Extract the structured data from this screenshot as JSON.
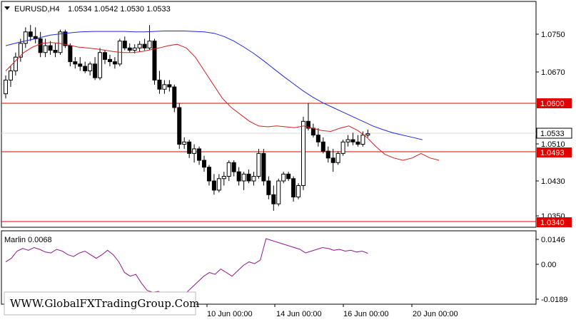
{
  "header": {
    "symbol": "EURUSD,H4",
    "ohlc": "1.0534 1.0542 1.0530 1.0533"
  },
  "price_axis": {
    "ticks": [
      "1.0750",
      "1.0670",
      "1.0510",
      "1.0430",
      "1.0350"
    ],
    "levels": [
      {
        "label": "1.0600",
        "value": 1.06,
        "color": "#e00000"
      },
      {
        "label": "1.0493",
        "value": 1.0493,
        "color": "#e00000"
      },
      {
        "label": "1.0340",
        "value": 1.034,
        "color": "#e00000"
      }
    ],
    "current": {
      "label": "1.0533",
      "value": 1.0533
    }
  },
  "indicator": {
    "label": "Marlin 0.0068",
    "ticks": [
      "0.0146",
      "0.00",
      "-0.0189"
    ]
  },
  "time_axis": {
    "labels": [
      "10 Jun 00:00",
      "14 Jun 00:00",
      "16 Jun 00:00",
      "20 Jun 00:00"
    ]
  },
  "watermark": "WWW.GlobalFXTradingGroup.Com",
  "colors": {
    "ma_slow": "#1f2bd8",
    "ma_fast": "#d62020",
    "marlin": "#8e1a8e",
    "level": "#e00000",
    "grid": "#c8c8c8"
  },
  "chart_data": {
    "type": "candlestick",
    "ohlc": [
      [
        1.062,
        1.066,
        1.061,
        1.065
      ],
      [
        1.065,
        1.068,
        1.0635,
        1.067
      ],
      [
        1.067,
        1.071,
        1.066,
        1.07
      ],
      [
        1.07,
        1.074,
        1.069,
        1.073
      ],
      [
        1.073,
        1.0765,
        1.072,
        1.0755
      ],
      [
        1.0755,
        1.077,
        1.0735,
        1.0745
      ],
      [
        1.0745,
        1.0765,
        1.073,
        1.074
      ],
      [
        1.074,
        1.0755,
        1.07,
        1.071
      ],
      [
        1.071,
        1.074,
        1.07,
        1.0725
      ],
      [
        1.0725,
        1.0735,
        1.0705,
        1.0715
      ],
      [
        1.0715,
        1.073,
        1.07,
        1.071
      ],
      [
        1.071,
        1.076,
        1.0705,
        1.0755
      ],
      [
        1.0755,
        1.076,
        1.072,
        1.0725
      ],
      [
        1.0725,
        1.073,
        1.068,
        1.069
      ],
      [
        1.069,
        1.07,
        1.0675,
        1.0685
      ],
      [
        1.0685,
        1.07,
        1.067,
        1.068
      ],
      [
        1.068,
        1.069,
        1.0665,
        1.067
      ],
      [
        1.067,
        1.069,
        1.066,
        1.0685
      ],
      [
        1.0685,
        1.07,
        1.065,
        1.0655
      ],
      [
        1.0655,
        1.072,
        1.065,
        1.071
      ],
      [
        1.071,
        1.0715,
        1.0685,
        1.0695
      ],
      [
        1.0695,
        1.0705,
        1.068,
        1.069
      ],
      [
        1.069,
        1.07,
        1.0675,
        1.0685
      ],
      [
        1.0685,
        1.074,
        1.068,
        1.0735
      ],
      [
        1.0735,
        1.0745,
        1.0715,
        1.072
      ],
      [
        1.072,
        1.073,
        1.071,
        1.0715
      ],
      [
        1.0715,
        1.0728,
        1.0708,
        1.072
      ],
      [
        1.072,
        1.0735,
        1.0712,
        1.0728
      ],
      [
        1.0728,
        1.074,
        1.0715,
        1.072
      ],
      [
        1.072,
        1.077,
        1.0715,
        1.0735
      ],
      [
        1.0735,
        1.074,
        1.064,
        1.065
      ],
      [
        1.065,
        1.067,
        1.062,
        1.063
      ],
      [
        1.063,
        1.065,
        1.062,
        1.064
      ],
      [
        1.064,
        1.065,
        1.0625,
        1.0635
      ],
      [
        1.0635,
        1.064,
        1.058,
        1.059
      ],
      [
        1.059,
        1.06,
        1.05,
        1.051
      ],
      [
        1.051,
        1.0525,
        1.05,
        1.0515
      ],
      [
        1.0515,
        1.052,
        1.048,
        1.049
      ],
      [
        1.049,
        1.051,
        1.047,
        1.05
      ],
      [
        1.05,
        1.0505,
        1.0465,
        1.0475
      ],
      [
        1.0475,
        1.0485,
        1.045,
        1.046
      ],
      [
        1.046,
        1.0465,
        1.042,
        1.043
      ],
      [
        1.043,
        1.0445,
        1.04,
        1.041
      ],
      [
        1.041,
        1.0445,
        1.0405,
        1.0435
      ],
      [
        1.0435,
        1.045,
        1.042,
        1.044
      ],
      [
        1.044,
        1.0475,
        1.043,
        1.047
      ],
      [
        1.047,
        1.0475,
        1.044,
        1.045
      ],
      [
        1.045,
        1.046,
        1.042,
        1.043
      ],
      [
        1.043,
        1.045,
        1.041,
        1.0445
      ],
      [
        1.0445,
        1.0455,
        1.0425,
        1.043
      ],
      [
        1.043,
        1.045,
        1.042,
        1.044
      ],
      [
        1.044,
        1.05,
        1.0435,
        1.049
      ],
      [
        1.049,
        1.05,
        1.042,
        1.043
      ],
      [
        1.043,
        1.044,
        1.039,
        1.04
      ],
      [
        1.04,
        1.042,
        1.0365,
        1.038
      ],
      [
        1.038,
        1.0435,
        1.0375,
        1.043
      ],
      [
        1.043,
        1.045,
        1.0425,
        1.0445
      ],
      [
        1.0445,
        1.045,
        1.043,
        1.0435
      ],
      [
        1.0435,
        1.044,
        1.0385,
        1.0395
      ],
      [
        1.0395,
        1.0425,
        1.039,
        1.042
      ],
      [
        1.042,
        1.057,
        1.041,
        1.056
      ],
      [
        1.056,
        1.06,
        1.054,
        1.0545
      ],
      [
        1.0545,
        1.0555,
        1.0525,
        1.053
      ],
      [
        1.053,
        1.0545,
        1.0505,
        1.0515
      ],
      [
        1.0515,
        1.0525,
        1.049,
        1.0495
      ],
      [
        1.0495,
        1.0505,
        1.047,
        1.048
      ],
      [
        1.048,
        1.05,
        1.045,
        1.047
      ],
      [
        1.047,
        1.0495,
        1.0465,
        1.049
      ],
      [
        1.049,
        1.052,
        1.0485,
        1.0515
      ],
      [
        1.0515,
        1.053,
        1.0505,
        1.052
      ],
      [
        1.052,
        1.0535,
        1.0508,
        1.0515
      ],
      [
        1.0515,
        1.053,
        1.0505,
        1.051
      ],
      [
        1.051,
        1.0538,
        1.0505,
        1.053
      ],
      [
        1.053,
        1.0542,
        1.0525,
        1.0533
      ]
    ],
    "ma_slow": [
      1.0725,
      1.0733,
      1.074,
      1.0748,
      1.0752,
      1.0755,
      1.0756,
      1.0756,
      1.0756,
      1.0755,
      1.0755,
      1.0756,
      1.0757,
      1.0757,
      1.0757,
      1.0756,
      1.0755,
      1.0752,
      1.0745,
      1.0735,
      1.0722,
      1.0708,
      1.0692,
      1.0675,
      1.0658,
      1.0642,
      1.0626,
      1.0612,
      1.06,
      1.059,
      1.058,
      1.057,
      1.056,
      1.055,
      1.0542,
      1.0535,
      1.053,
      1.0525,
      1.052
    ],
    "ma_slow_x": [
      0,
      3,
      6,
      9,
      12,
      15,
      18,
      21,
      24,
      26,
      28,
      30,
      32,
      34,
      36,
      38,
      40,
      42,
      44,
      46,
      48,
      50,
      52,
      54,
      56,
      58,
      60,
      62,
      64,
      66,
      68,
      70,
      72,
      74,
      76,
      78,
      80,
      82,
      84
    ],
    "ma_fast": [
      1.067,
      1.069,
      1.071,
      1.0722,
      1.073,
      1.0732,
      1.073,
      1.0726,
      1.0722,
      1.072,
      1.0718,
      1.0715,
      1.0712,
      1.071,
      1.071,
      1.0712,
      1.0716,
      1.072,
      1.0725,
      1.0728,
      1.072,
      1.07,
      1.067,
      1.064,
      1.061,
      1.059,
      1.0575,
      1.056,
      1.055,
      1.0548,
      1.055,
      1.0548,
      1.0546,
      1.055,
      1.0545,
      1.054,
      1.0538,
      1.0545,
      1.055,
      1.054,
      1.0525,
      1.0505,
      1.0488,
      1.048,
      1.0475,
      1.048,
      1.049,
      1.048,
      1.0475
    ],
    "ma_fast_x": [
      0,
      2,
      4,
      6,
      8,
      10,
      12,
      14,
      16,
      18,
      20,
      22,
      24,
      26,
      28,
      30,
      32,
      34,
      36,
      38,
      40,
      42,
      44,
      46,
      48,
      50,
      52,
      54,
      56,
      58,
      60,
      62,
      64,
      66,
      68,
      70,
      72,
      74,
      76,
      78,
      80,
      82,
      84,
      86,
      88,
      90,
      92,
      94,
      96
    ],
    "marlin": [
      0.002,
      0.004,
      0.008,
      0.0095,
      0.0085,
      0.01,
      0.009,
      0.0075,
      0.007,
      0.009,
      0.008,
      0.006,
      0.005,
      0.007,
      0.008,
      0.006,
      0.004,
      0.006,
      0.0085,
      0.006,
      0.002,
      -0.004,
      -0.006,
      -0.005,
      -0.01,
      -0.014,
      -0.015,
      -0.0145,
      -0.0165,
      -0.016,
      -0.0175,
      -0.018,
      -0.015,
      -0.012,
      -0.009,
      -0.006,
      -0.004,
      -0.005,
      -0.002,
      -0.004,
      -0.006,
      -0.003,
      0.0,
      0.002,
      0.001,
      0.003,
      0.015,
      0.014,
      0.013,
      0.012,
      0.011,
      0.01,
      0.009,
      0.007,
      0.008,
      0.009,
      0.01,
      0.0095,
      0.0085,
      0.009,
      0.008,
      0.0085,
      0.0075,
      0.008,
      0.0068
    ],
    "ylim": [
      1.034,
      1.08
    ],
    "marlin_ylim": [
      -0.0189,
      0.0146
    ]
  }
}
